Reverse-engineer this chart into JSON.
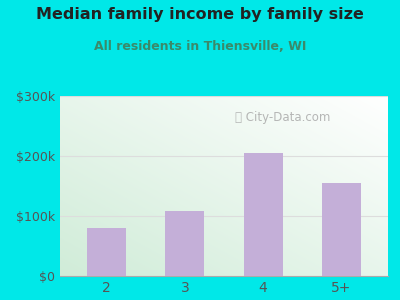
{
  "categories": [
    "2",
    "3",
    "4",
    "5+"
  ],
  "values": [
    80000,
    108000,
    205000,
    155000
  ],
  "bar_color": "#c4afd8",
  "title": "Median family income by family size",
  "subtitle": "All residents in Thiensville, WI",
  "ylim": [
    0,
    300000
  ],
  "yticks": [
    0,
    100000,
    200000,
    300000
  ],
  "ytick_labels": [
    "$0",
    "$100k",
    "$200k",
    "$300k"
  ],
  "outer_bg": "#00e8e8",
  "plot_bg_topleft": "#d0ecd8",
  "plot_bg_bottomright": "#ffffff",
  "title_color": "#222222",
  "subtitle_color": "#3a8a6a",
  "tick_color": "#555555",
  "watermark": "City-Data.com",
  "grid_color": "#dddddd"
}
